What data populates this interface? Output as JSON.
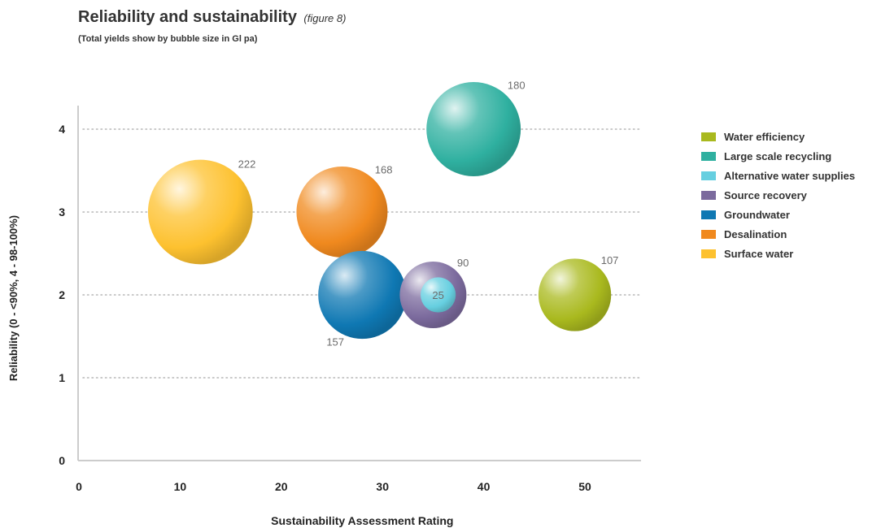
{
  "title": "Reliability and sustainability",
  "title_note": "(figure 8)",
  "subtitle": "(Total yields show by bubble size in Gl pa)",
  "chart_data": {
    "type": "bubble",
    "xlabel": "Sustainability Assessment Rating",
    "ylabel": "Reliability (0 - <90%, 4 - 98-100%)",
    "xlim": [
      0,
      55
    ],
    "ylim": [
      0,
      4
    ],
    "x_ticks": [
      "0",
      "10",
      "20",
      "30",
      "40",
      "50"
    ],
    "y_ticks": [
      "0",
      "1",
      "2",
      "3",
      "4"
    ],
    "grid": "horizontal-dotted",
    "legend_position": "right",
    "series": [
      {
        "name": "Water efficiency",
        "color": "#a9b91e",
        "x": 49,
        "y": 2,
        "size": 107,
        "size_label": "107"
      },
      {
        "name": "Large scale recycling",
        "color": "#2fb0a0",
        "x": 39,
        "y": 4,
        "size": 180,
        "size_label": "180"
      },
      {
        "name": "Alternative water supplies",
        "color": "#66cfe0",
        "x": 35.5,
        "y": 2,
        "size": 25,
        "size_label": "25"
      },
      {
        "name": "Source recovery",
        "color": "#7b6a9d",
        "x": 35,
        "y": 2,
        "size": 90,
        "size_label": "90"
      },
      {
        "name": "Groundwater",
        "color": "#0f78b3",
        "x": 28,
        "y": 2,
        "size": 157,
        "size_label": "157"
      },
      {
        "name": "Desalination",
        "color": "#f0891e",
        "x": 26,
        "y": 3,
        "size": 168,
        "size_label": "168"
      },
      {
        "name": "Surface water",
        "color": "#fdc12f",
        "x": 12,
        "y": 3,
        "size": 222,
        "size_label": "222"
      }
    ]
  }
}
